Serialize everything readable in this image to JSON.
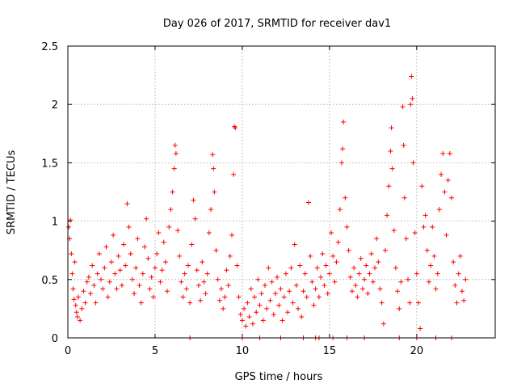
{
  "chart_data": {
    "type": "scatter",
    "title": "Day 026 of 2017, SRMTID for receiver dav1",
    "xlabel": "GPS time / hours",
    "ylabel": "SRMTID / TECUs",
    "xlim": [
      0,
      24.5
    ],
    "ylim": [
      0,
      2.5
    ],
    "xticks": [
      0,
      5,
      10,
      15,
      20
    ],
    "xtick_labels": [
      "0",
      "5",
      "10",
      "15",
      "20"
    ],
    "yticks": [
      0,
      0.5,
      1,
      1.5,
      2,
      2.5
    ],
    "ytick_labels": [
      "0",
      "0.5",
      "1",
      "1.5",
      "2",
      "2.5"
    ],
    "grid": true,
    "marker": "+",
    "color": "#ff0000",
    "series": [
      {
        "name": "SRMTID",
        "points": [
          [
            0.05,
            0.95
          ],
          [
            0.1,
            0.85
          ],
          [
            0.15,
            1.01
          ],
          [
            0.2,
            0.72
          ],
          [
            0.25,
            0.55
          ],
          [
            0.3,
            0.42
          ],
          [
            0.35,
            0.33
          ],
          [
            0.4,
            0.65
          ],
          [
            0.45,
            0.28
          ],
          [
            0.5,
            0.22
          ],
          [
            0.55,
            0.18
          ],
          [
            0.6,
            0.35
          ],
          [
            0.7,
            0.15
          ],
          [
            0.8,
            0.25
          ],
          [
            0.9,
            0.4
          ],
          [
            1.0,
            0.3
          ],
          [
            1.1,
            0.48
          ],
          [
            1.2,
            0.52
          ],
          [
            1.3,
            0.38
          ],
          [
            1.4,
            0.62
          ],
          [
            1.5,
            0.45
          ],
          [
            1.6,
            0.3
          ],
          [
            1.7,
            0.55
          ],
          [
            1.8,
            0.72
          ],
          [
            1.9,
            0.5
          ],
          [
            2.0,
            0.42
          ],
          [
            2.1,
            0.6
          ],
          [
            2.2,
            0.78
          ],
          [
            2.3,
            0.35
          ],
          [
            2.4,
            0.48
          ],
          [
            2.5,
            0.65
          ],
          [
            2.6,
            0.88
          ],
          [
            2.7,
            0.55
          ],
          [
            2.8,
            0.42
          ],
          [
            2.9,
            0.7
          ],
          [
            3.0,
            0.58
          ],
          [
            3.1,
            0.45
          ],
          [
            3.2,
            0.8
          ],
          [
            3.3,
            0.62
          ],
          [
            3.4,
            1.15
          ],
          [
            3.5,
            0.95
          ],
          [
            3.6,
            0.72
          ],
          [
            3.7,
            0.5
          ],
          [
            3.8,
            0.38
          ],
          [
            3.9,
            0.6
          ],
          [
            4.0,
            0.85
          ],
          [
            4.1,
            0.45
          ],
          [
            4.2,
            0.3
          ],
          [
            4.3,
            0.55
          ],
          [
            4.4,
            0.78
          ],
          [
            4.5,
            1.02
          ],
          [
            4.6,
            0.68
          ],
          [
            4.7,
            0.42
          ],
          [
            4.8,
            0.52
          ],
          [
            4.9,
            0.35
          ],
          [
            5.0,
            0.6
          ],
          [
            5.1,
            0.72
          ],
          [
            5.2,
            0.9
          ],
          [
            5.3,
            0.48
          ],
          [
            5.4,
            0.58
          ],
          [
            5.5,
            0.82
          ],
          [
            5.6,
            0.65
          ],
          [
            5.7,
            0.4
          ],
          [
            5.8,
            0.95
          ],
          [
            5.9,
            1.1
          ],
          [
            6.0,
            1.25
          ],
          [
            6.1,
            1.45
          ],
          [
            6.15,
            1.65
          ],
          [
            6.2,
            1.58
          ],
          [
            6.3,
            0.92
          ],
          [
            6.4,
            0.7
          ],
          [
            6.5,
            0.48
          ],
          [
            6.6,
            0.35
          ],
          [
            6.7,
            0.55
          ],
          [
            6.8,
            0.42
          ],
          [
            6.9,
            0.62
          ],
          [
            7.0,
            0.3
          ],
          [
            7.1,
            0.8
          ],
          [
            7.2,
            1.18
          ],
          [
            7.3,
            1.02
          ],
          [
            7.4,
            0.58
          ],
          [
            7.5,
            0.45
          ],
          [
            7.6,
            0.32
          ],
          [
            7.7,
            0.65
          ],
          [
            7.8,
            0.48
          ],
          [
            7.9,
            0.38
          ],
          [
            8.0,
            0.55
          ],
          [
            8.1,
            0.9
          ],
          [
            8.2,
            1.1
          ],
          [
            8.3,
            1.57
          ],
          [
            8.35,
            1.45
          ],
          [
            8.4,
            1.25
          ],
          [
            8.5,
            0.75
          ],
          [
            8.6,
            0.5
          ],
          [
            8.7,
            0.32
          ],
          [
            8.8,
            0.42
          ],
          [
            8.9,
            0.25
          ],
          [
            9.0,
            0.35
          ],
          [
            9.1,
            0.58
          ],
          [
            9.2,
            0.45
          ],
          [
            9.3,
            0.7
          ],
          [
            9.4,
            0.88
          ],
          [
            9.5,
            1.4
          ],
          [
            9.55,
            1.81
          ],
          [
            9.6,
            1.8
          ],
          [
            9.7,
            0.62
          ],
          [
            9.8,
            0.35
          ],
          [
            9.9,
            0.2
          ],
          [
            10.0,
            0.15
          ],
          [
            10.1,
            0.25
          ],
          [
            10.2,
            0.1
          ],
          [
            10.3,
            0.3
          ],
          [
            10.4,
            0.18
          ],
          [
            10.5,
            0.42
          ],
          [
            10.6,
            0.12
          ],
          [
            10.7,
            0.35
          ],
          [
            10.8,
            0.22
          ],
          [
            10.9,
            0.5
          ],
          [
            11.0,
            0.28
          ],
          [
            11.1,
            0.38
          ],
          [
            11.2,
            0.15
          ],
          [
            11.3,
            0.45
          ],
          [
            11.4,
            0.25
          ],
          [
            11.5,
            0.6
          ],
          [
            11.6,
            0.32
          ],
          [
            11.7,
            0.48
          ],
          [
            11.8,
            0.2
          ],
          [
            11.9,
            0.38
          ],
          [
            12.0,
            0.52
          ],
          [
            12.1,
            0.28
          ],
          [
            12.2,
            0.42
          ],
          [
            12.3,
            0.15
          ],
          [
            12.4,
            0.35
          ],
          [
            12.5,
            0.55
          ],
          [
            12.6,
            0.22
          ],
          [
            12.7,
            0.4
          ],
          [
            12.8,
            0.6
          ],
          [
            12.9,
            0.3
          ],
          [
            13.0,
            0.8
          ],
          [
            13.1,
            0.45
          ],
          [
            13.2,
            0.25
          ],
          [
            13.3,
            0.62
          ],
          [
            13.4,
            0.18
          ],
          [
            13.5,
            0.4
          ],
          [
            13.6,
            0.55
          ],
          [
            13.7,
            0.35
          ],
          [
            13.8,
            1.16
          ],
          [
            13.9,
            0.7
          ],
          [
            14.0,
            0.48
          ],
          [
            14.1,
            0.28
          ],
          [
            14.2,
            0.42
          ],
          [
            14.3,
            0.6
          ],
          [
            14.4,
            0.35
          ],
          [
            14.5,
            0.52
          ],
          [
            14.6,
            0.72
          ],
          [
            14.7,
            0.45
          ],
          [
            14.8,
            0.62
          ],
          [
            14.9,
            0.38
          ],
          [
            15.0,
            0.55
          ],
          [
            15.1,
            0.9
          ],
          [
            15.2,
            0.7
          ],
          [
            15.3,
            0.48
          ],
          [
            15.4,
            0.65
          ],
          [
            15.5,
            0.82
          ],
          [
            15.6,
            1.1
          ],
          [
            15.7,
            1.5
          ],
          [
            15.75,
            1.62
          ],
          [
            15.8,
            1.85
          ],
          [
            15.9,
            1.2
          ],
          [
            16.0,
            0.95
          ],
          [
            16.1,
            0.75
          ],
          [
            16.2,
            0.52
          ],
          [
            16.3,
            0.4
          ],
          [
            16.4,
            0.6
          ],
          [
            16.5,
            0.45
          ],
          [
            16.6,
            0.35
          ],
          [
            16.7,
            0.55
          ],
          [
            16.8,
            0.68
          ],
          [
            16.9,
            0.42
          ],
          [
            17.0,
            0.5
          ],
          [
            17.1,
            0.62
          ],
          [
            17.2,
            0.38
          ],
          [
            17.3,
            0.55
          ],
          [
            17.4,
            0.72
          ],
          [
            17.5,
            0.48
          ],
          [
            17.6,
            0.6
          ],
          [
            17.7,
            0.85
          ],
          [
            17.8,
            0.65
          ],
          [
            17.9,
            0.42
          ],
          [
            18.0,
            0.3
          ],
          [
            18.1,
            0.12
          ],
          [
            18.2,
            0.75
          ],
          [
            18.3,
            1.05
          ],
          [
            18.4,
            1.3
          ],
          [
            18.5,
            1.6
          ],
          [
            18.55,
            1.8
          ],
          [
            18.6,
            1.45
          ],
          [
            18.7,
            0.92
          ],
          [
            18.8,
            0.6
          ],
          [
            18.9,
            0.4
          ],
          [
            19.0,
            0.25
          ],
          [
            19.1,
            0.48
          ],
          [
            19.2,
            1.98
          ],
          [
            19.25,
            1.65
          ],
          [
            19.3,
            1.2
          ],
          [
            19.4,
            0.85
          ],
          [
            19.5,
            0.5
          ],
          [
            19.6,
            0.3
          ],
          [
            19.65,
            2.0
          ],
          [
            19.7,
            2.24
          ],
          [
            19.75,
            2.05
          ],
          [
            19.8,
            1.5
          ],
          [
            19.9,
            0.9
          ],
          [
            20.0,
            0.55
          ],
          [
            20.1,
            0.3
          ],
          [
            20.2,
            0.08
          ],
          [
            20.3,
            1.3
          ],
          [
            20.4,
            0.95
          ],
          [
            20.5,
            1.05
          ],
          [
            20.6,
            0.75
          ],
          [
            20.7,
            0.48
          ],
          [
            20.8,
            0.62
          ],
          [
            20.9,
            0.95
          ],
          [
            21.0,
            0.7
          ],
          [
            21.1,
            0.42
          ],
          [
            21.2,
            0.55
          ],
          [
            21.3,
            1.1
          ],
          [
            21.4,
            1.4
          ],
          [
            21.5,
            1.58
          ],
          [
            21.6,
            1.25
          ],
          [
            21.7,
            0.88
          ],
          [
            21.8,
            1.35
          ],
          [
            21.9,
            1.58
          ],
          [
            22.0,
            1.2
          ],
          [
            22.1,
            0.65
          ],
          [
            22.2,
            0.45
          ],
          [
            22.3,
            0.3
          ],
          [
            22.4,
            0.55
          ],
          [
            22.5,
            0.7
          ],
          [
            22.6,
            0.4
          ],
          [
            22.7,
            0.32
          ],
          [
            22.8,
            0.5
          ],
          [
            7.0,
            0.0
          ],
          [
            10.0,
            0.0
          ],
          [
            11.0,
            0.0
          ],
          [
            12.2,
            0.0
          ],
          [
            13.5,
            0.0
          ],
          [
            14.2,
            0.0
          ],
          [
            14.4,
            0.0
          ],
          [
            15.2,
            0.0
          ],
          [
            16.0,
            0.0
          ],
          [
            17.0,
            0.0
          ],
          [
            19.0,
            0.0
          ],
          [
            20.0,
            0.0
          ],
          [
            21.1,
            0.0
          ],
          [
            22.0,
            0.0
          ]
        ]
      }
    ]
  }
}
